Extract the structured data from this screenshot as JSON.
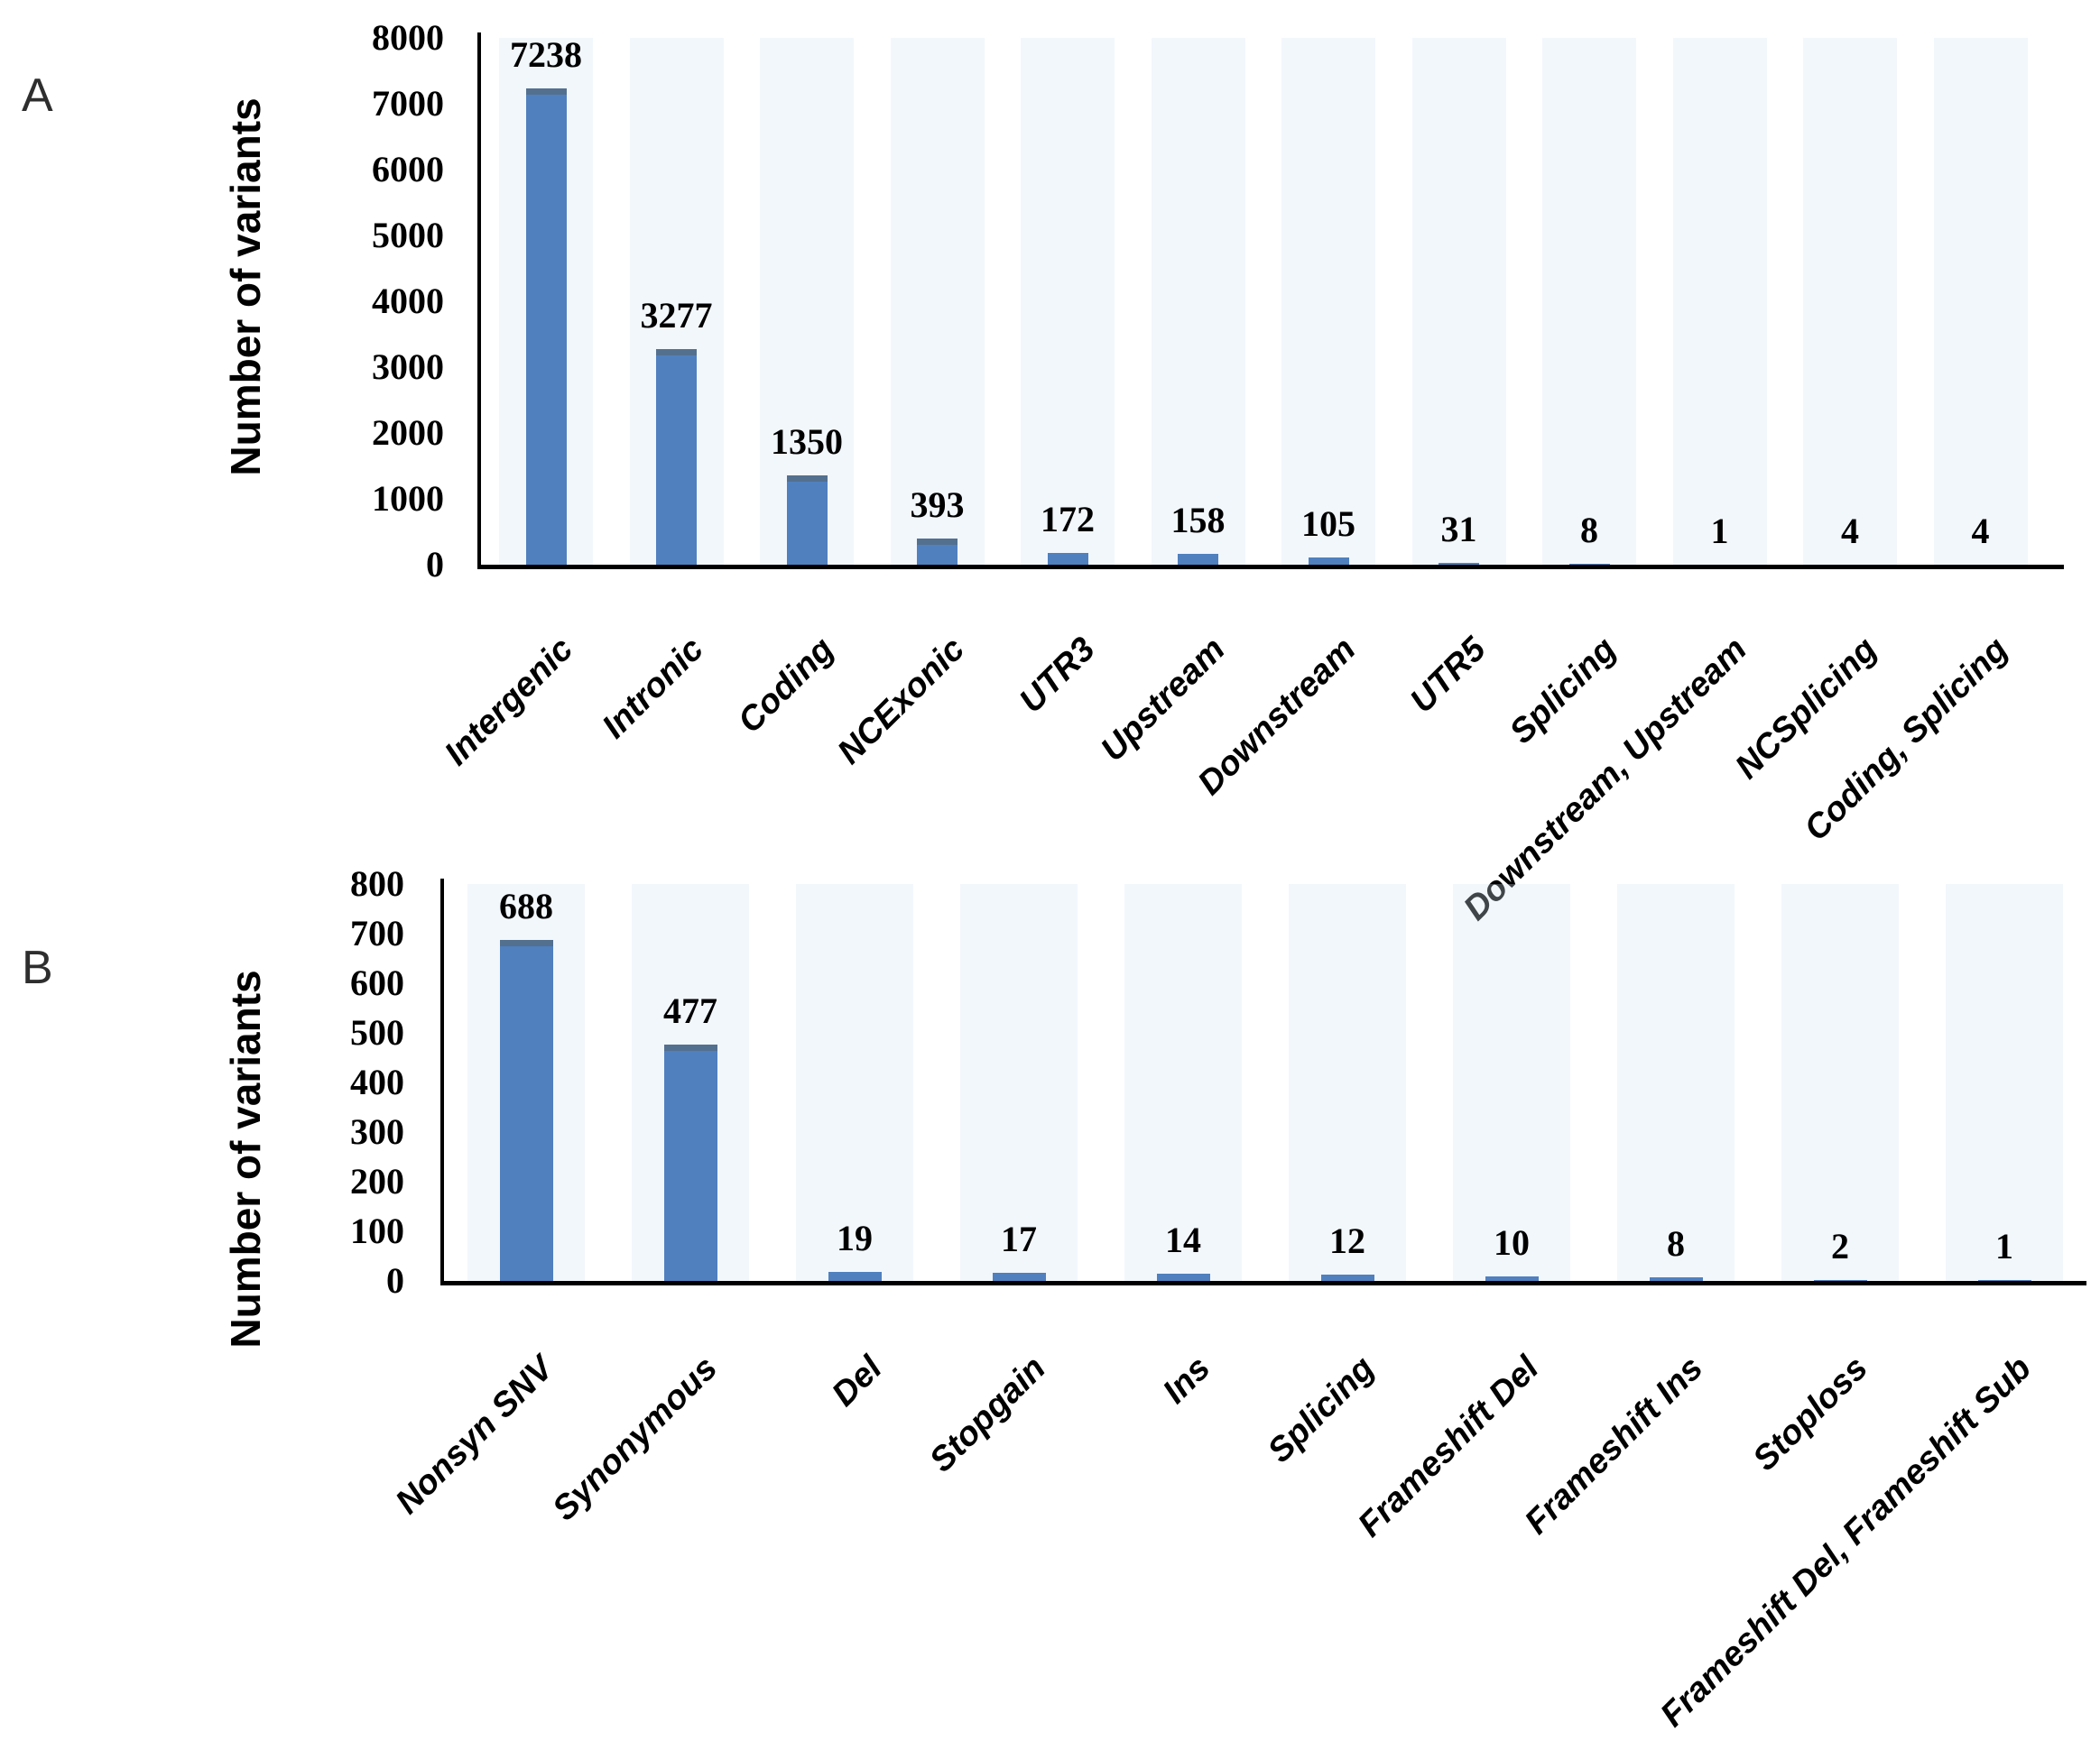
{
  "chart_data": [
    {
      "type": "bar",
      "panel": "A",
      "title": "",
      "xlabel": "",
      "ylabel": "Number of variants",
      "categories": [
        "Intergenic",
        "Intronic",
        "Coding",
        "NCExonic",
        "UTR3",
        "Upstream",
        "Downstream",
        "UTR5",
        "Splicing",
        "Downstream, Upstream",
        "NCSplicing",
        "Coding, Splicing"
      ],
      "values": [
        7238,
        3277,
        1350,
        393,
        172,
        158,
        105,
        31,
        8,
        1,
        4,
        4
      ],
      "ylim": [
        0,
        8000
      ],
      "ytick_step": 1000,
      "value_labels_shown": true,
      "grid": false,
      "legend": "none",
      "bar_color": "#5080BE",
      "bar_cap_color": "#54708F",
      "axis_color": "#000000"
    },
    {
      "type": "bar",
      "panel": "B",
      "title": "",
      "xlabel": "",
      "ylabel": "Number of variants",
      "categories": [
        "Nonsyn SNV",
        "Synonymous",
        "Del",
        "Stopgain",
        "Ins",
        "Splicing",
        "Frameshift Del",
        "Frameshift Ins",
        "Stoploss",
        "Frameshift Del, Frameshift Sub"
      ],
      "values": [
        688,
        477,
        19,
        17,
        14,
        12,
        10,
        8,
        2,
        1
      ],
      "ylim": [
        0,
        800
      ],
      "ytick_step": 100,
      "value_labels_shown": true,
      "grid": false,
      "legend": "none",
      "bar_color": "#5080BE",
      "bar_cap_color": "#54708F",
      "axis_color": "#000000"
    }
  ]
}
